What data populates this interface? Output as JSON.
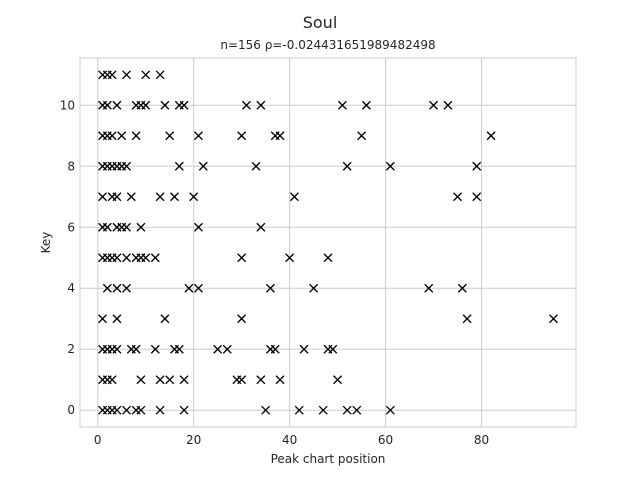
{
  "chart_data": {
    "type": "scatter",
    "title": "Soul",
    "subtitle": "n=156 ρ=-0.024431651989482498",
    "xlabel": "Peak chart position",
    "ylabel": "Key",
    "xlim": [
      -3.7,
      99.7
    ],
    "ylim": [
      -0.55,
      11.55
    ],
    "xticks": [
      0,
      20,
      40,
      60,
      80
    ],
    "yticks": [
      0,
      2,
      4,
      6,
      8,
      10
    ],
    "grid": true,
    "marker": "x",
    "colors": {
      "marker": "#000000",
      "grid": "#cccccc",
      "frame": "#cccccc",
      "text": "#262626"
    },
    "points": [
      [
        1,
        0
      ],
      [
        2,
        0
      ],
      [
        3,
        0
      ],
      [
        4,
        0
      ],
      [
        6,
        0
      ],
      [
        8,
        0
      ],
      [
        9,
        0
      ],
      [
        13,
        0
      ],
      [
        18,
        0
      ],
      [
        35,
        0
      ],
      [
        42,
        0
      ],
      [
        47,
        0
      ],
      [
        52,
        0
      ],
      [
        54,
        0
      ],
      [
        61,
        0
      ],
      [
        1,
        1
      ],
      [
        2,
        1
      ],
      [
        3,
        1
      ],
      [
        9,
        1
      ],
      [
        13,
        1
      ],
      [
        15,
        1
      ],
      [
        18,
        1
      ],
      [
        29,
        1
      ],
      [
        30,
        1
      ],
      [
        34,
        1
      ],
      [
        38,
        1
      ],
      [
        50,
        1
      ],
      [
        1,
        2
      ],
      [
        2,
        2
      ],
      [
        3,
        2
      ],
      [
        4,
        2
      ],
      [
        7,
        2
      ],
      [
        8,
        2
      ],
      [
        12,
        2
      ],
      [
        16,
        2
      ],
      [
        17,
        2
      ],
      [
        25,
        2
      ],
      [
        27,
        2
      ],
      [
        36,
        2
      ],
      [
        37,
        2
      ],
      [
        43,
        2
      ],
      [
        48,
        2
      ],
      [
        49,
        2
      ],
      [
        1,
        3
      ],
      [
        4,
        3
      ],
      [
        14,
        3
      ],
      [
        30,
        3
      ],
      [
        77,
        3
      ],
      [
        95,
        3
      ],
      [
        2,
        4
      ],
      [
        4,
        4
      ],
      [
        6,
        4
      ],
      [
        19,
        4
      ],
      [
        21,
        4
      ],
      [
        36,
        4
      ],
      [
        45,
        4
      ],
      [
        69,
        4
      ],
      [
        76,
        4
      ],
      [
        1,
        5
      ],
      [
        2,
        5
      ],
      [
        3,
        5
      ],
      [
        4,
        5
      ],
      [
        6,
        5
      ],
      [
        8,
        5
      ],
      [
        9,
        5
      ],
      [
        10,
        5
      ],
      [
        12,
        5
      ],
      [
        30,
        5
      ],
      [
        40,
        5
      ],
      [
        48,
        5
      ],
      [
        1,
        6
      ],
      [
        2,
        6
      ],
      [
        4,
        6
      ],
      [
        5,
        6
      ],
      [
        6,
        6
      ],
      [
        9,
        6
      ],
      [
        21,
        6
      ],
      [
        34,
        6
      ],
      [
        1,
        7
      ],
      [
        3,
        7
      ],
      [
        4,
        7
      ],
      [
        7,
        7
      ],
      [
        13,
        7
      ],
      [
        16,
        7
      ],
      [
        20,
        7
      ],
      [
        41,
        7
      ],
      [
        75,
        7
      ],
      [
        79,
        7
      ],
      [
        1,
        8
      ],
      [
        2,
        8
      ],
      [
        3,
        8
      ],
      [
        4,
        8
      ],
      [
        5,
        8
      ],
      [
        6,
        8
      ],
      [
        17,
        8
      ],
      [
        22,
        8
      ],
      [
        33,
        8
      ],
      [
        52,
        8
      ],
      [
        61,
        8
      ],
      [
        79,
        8
      ],
      [
        1,
        9
      ],
      [
        2,
        9
      ],
      [
        3,
        9
      ],
      [
        5,
        9
      ],
      [
        8,
        9
      ],
      [
        15,
        9
      ],
      [
        21,
        9
      ],
      [
        30,
        9
      ],
      [
        37,
        9
      ],
      [
        38,
        9
      ],
      [
        55,
        9
      ],
      [
        82,
        9
      ],
      [
        1,
        10
      ],
      [
        2,
        10
      ],
      [
        4,
        10
      ],
      [
        8,
        10
      ],
      [
        9,
        10
      ],
      [
        10,
        10
      ],
      [
        14,
        10
      ],
      [
        17,
        10
      ],
      [
        18,
        10
      ],
      [
        31,
        10
      ],
      [
        34,
        10
      ],
      [
        51,
        10
      ],
      [
        56,
        10
      ],
      [
        70,
        10
      ],
      [
        73,
        10
      ],
      [
        1,
        11
      ],
      [
        2,
        11
      ],
      [
        3,
        11
      ],
      [
        6,
        11
      ],
      [
        10,
        11
      ],
      [
        13,
        11
      ]
    ]
  }
}
